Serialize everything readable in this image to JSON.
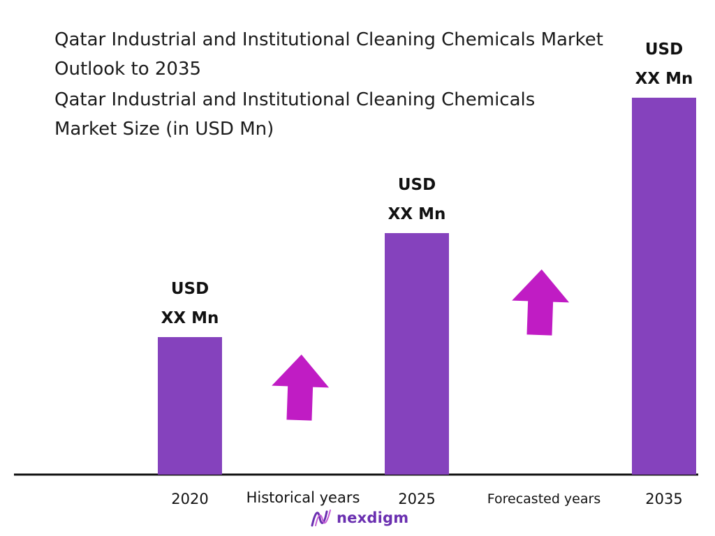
{
  "title": "Qatar Industrial and Institutional Cleaning Chemicals Market Outlook to 2035",
  "subtitle": "Qatar Industrial and Institutional Cleaning Chemicals Market Size (in USD Mn)",
  "chart_data": {
    "type": "bar",
    "categories": [
      "2020",
      "2025",
      "2035"
    ],
    "values": [
      197,
      346,
      540
    ],
    "value_labels": [
      [
        "USD",
        "XX Mn"
      ],
      [
        "USD",
        "XX Mn"
      ],
      [
        "USD",
        "XX Mn"
      ]
    ],
    "period_labels": [
      "Historical years",
      "Forecasted years"
    ],
    "title": "Qatar Industrial and Institutional Cleaning Chemicals Market Outlook to 2035",
    "xlabel": "",
    "ylabel": "",
    "grid": false,
    "legend": "none",
    "bar_color": "#8542bd",
    "arrow_color": "#c01cc4"
  },
  "logo": {
    "text": "nexdigm",
    "color": "#6a2fb0",
    "icon": "nexdigm-logo-icon"
  }
}
